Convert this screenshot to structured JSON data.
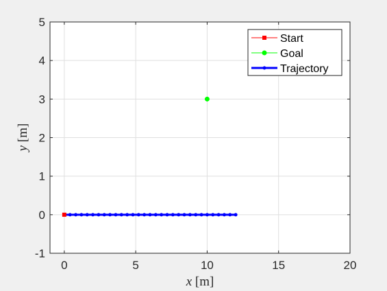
{
  "chart_data": {
    "type": "line",
    "title": "",
    "xlabel": {
      "var": "x",
      "unit": "[m]"
    },
    "ylabel": {
      "var": "y",
      "unit": "[m]"
    },
    "xlim": [
      -1,
      20
    ],
    "ylim": [
      -1,
      5
    ],
    "xticks": [
      0,
      5,
      10,
      15,
      20
    ],
    "yticks": [
      -1,
      0,
      1,
      2,
      3,
      4,
      5
    ],
    "grid": true,
    "legend_position": "top-right",
    "series": [
      {
        "name": "Start",
        "color": "#ff0000",
        "marker": "square",
        "x": [
          0
        ],
        "y": [
          0
        ]
      },
      {
        "name": "Goal",
        "color": "#00ff00",
        "marker": "circle",
        "x": [
          10
        ],
        "y": [
          3
        ]
      },
      {
        "name": "Trajectory",
        "color": "#0000ff",
        "marker": "dot",
        "x": [
          0,
          0.4,
          0.8,
          1.2,
          1.6,
          2.0,
          2.4,
          2.8,
          3.2,
          3.6,
          4.0,
          4.4,
          4.8,
          5.2,
          5.6,
          6.0,
          6.4,
          6.8,
          7.2,
          7.6,
          8.0,
          8.4,
          8.8,
          9.2,
          9.6,
          10.0,
          10.4,
          10.8,
          11.2,
          11.6,
          12.0
        ],
        "y": [
          0,
          0,
          0,
          0,
          0,
          0,
          0,
          0,
          0,
          0,
          0,
          0,
          0,
          0,
          0,
          0,
          0,
          0,
          0,
          0,
          0,
          0,
          0,
          0,
          0,
          0,
          0,
          0,
          0,
          0,
          0
        ]
      }
    ]
  }
}
